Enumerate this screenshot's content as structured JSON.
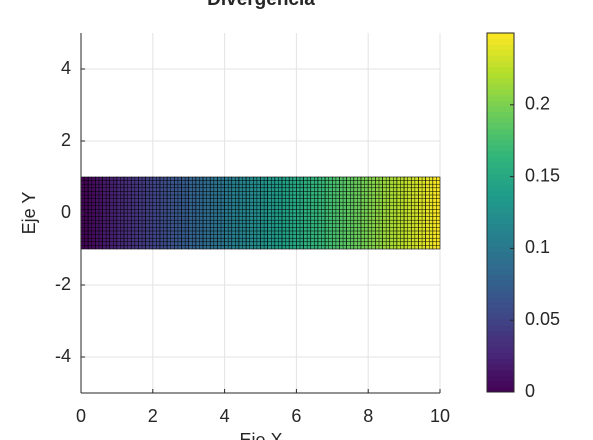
{
  "chart_data": {
    "type": "heatmap",
    "title": "Divergencia",
    "xlabel": "Eje X",
    "ylabel": "Eje Y",
    "colormap": "viridis",
    "x_edges": [
      0,
      0.2,
      0.4,
      0.6,
      0.8,
      1,
      1.2,
      1.4,
      1.6,
      1.8,
      2,
      2.2,
      2.4,
      2.6,
      2.8,
      3,
      3.2,
      3.4,
      3.6,
      3.8,
      4,
      4.2,
      4.4,
      4.6,
      4.8,
      5,
      5.2,
      5.4,
      5.6,
      5.8,
      6,
      6.2,
      6.4,
      6.6,
      6.8,
      7,
      7.2,
      7.4,
      7.6,
      7.8,
      8,
      8.2,
      8.4,
      8.6,
      8.8,
      9,
      9.2,
      9.4,
      9.6,
      9.8,
      10
    ],
    "y_edges": [
      -1,
      1
    ],
    "values": [
      0.0025,
      0.0075,
      0.0125,
      0.0175,
      0.0225,
      0.0275,
      0.0325,
      0.0375,
      0.0425,
      0.0475,
      0.0525,
      0.0575,
      0.0625,
      0.0675,
      0.0725,
      0.0775,
      0.0825,
      0.0875,
      0.0925,
      0.0975,
      0.1025,
      0.1075,
      0.1125,
      0.1175,
      0.1225,
      0.1275,
      0.1325,
      0.1375,
      0.1425,
      0.1475,
      0.1525,
      0.1575,
      0.1625,
      0.1675,
      0.1725,
      0.1775,
      0.1825,
      0.1875,
      0.1925,
      0.1975,
      0.2025,
      0.2075,
      0.2125,
      0.2175,
      0.2225,
      0.2275,
      0.2325,
      0.2375,
      0.2425,
      0.2475
    ],
    "xlim": [
      0,
      10
    ],
    "xticks": [
      0,
      2,
      4,
      6,
      8,
      10
    ],
    "ylim": [
      -5,
      5
    ],
    "yticks": [
      -4,
      -2,
      0,
      2,
      4
    ],
    "clim": [
      0,
      0.25
    ],
    "cticks": [
      0,
      0.05,
      0.1,
      0.15,
      0.2
    ],
    "grid": true
  }
}
